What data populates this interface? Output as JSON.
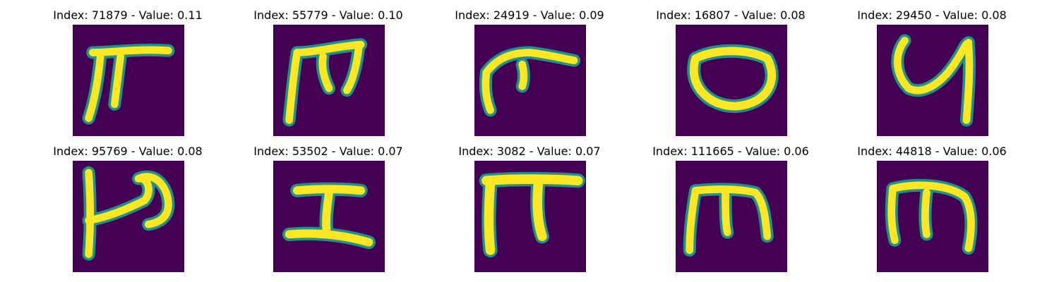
{
  "colors": {
    "background": "#440154",
    "stroke_edge": "#21918c",
    "stroke_core": "#fde725"
  },
  "panels": [
    {
      "title": "Index: 71879 - Value: 0.11",
      "glyph": "handwritten-glyph-pi-like"
    },
    {
      "title": "Index: 55779 - Value: 0.10",
      "glyph": "handwritten-glyph-m-like"
    },
    {
      "title": "Index: 24919 - Value: 0.09",
      "glyph": "handwritten-glyph-curled-stroke"
    },
    {
      "title": "Index: 16807 - Value: 0.08",
      "glyph": "handwritten-glyph-o-like"
    },
    {
      "title": "Index: 29450 - Value: 0.08",
      "glyph": "handwritten-glyph-y-like"
    },
    {
      "title": "Index: 95769 - Value: 0.08",
      "glyph": "handwritten-glyph-p-like"
    },
    {
      "title": "Index: 53502 - Value: 0.07",
      "glyph": "handwritten-glyph-i-like"
    },
    {
      "title": "Index: 3082 - Value: 0.07",
      "glyph": "handwritten-glyph-pi-like"
    },
    {
      "title": "Index: 111665 - Value: 0.06",
      "glyph": "handwritten-glyph-m-like"
    },
    {
      "title": "Index: 44818 - Value: 0.06",
      "glyph": "handwritten-glyph-m-like"
    }
  ]
}
